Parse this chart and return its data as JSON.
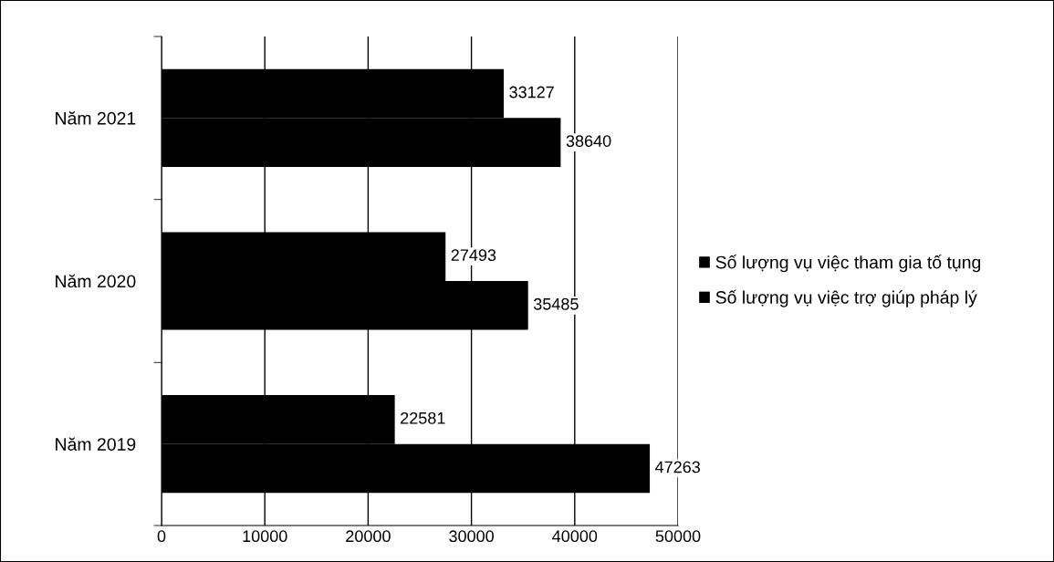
{
  "chart_data": {
    "type": "bar",
    "orientation": "horizontal",
    "categories": [
      "Năm 2021",
      "Năm 2020",
      "Năm 2019"
    ],
    "series": [
      {
        "name": "Số lượng vụ việc tham gia tố tụng",
        "color": "#000000",
        "values": [
          33127,
          27493,
          22581
        ]
      },
      {
        "name": "Số lượng vụ việc trợ giúp pháp lý",
        "color": "#000000",
        "values": [
          38640,
          35485,
          47263
        ]
      }
    ],
    "xlim": [
      0,
      50000
    ],
    "xticks": [
      0,
      10000,
      20000,
      30000,
      40000,
      50000
    ],
    "grid": "x",
    "legend": "right",
    "data_labels": true
  }
}
